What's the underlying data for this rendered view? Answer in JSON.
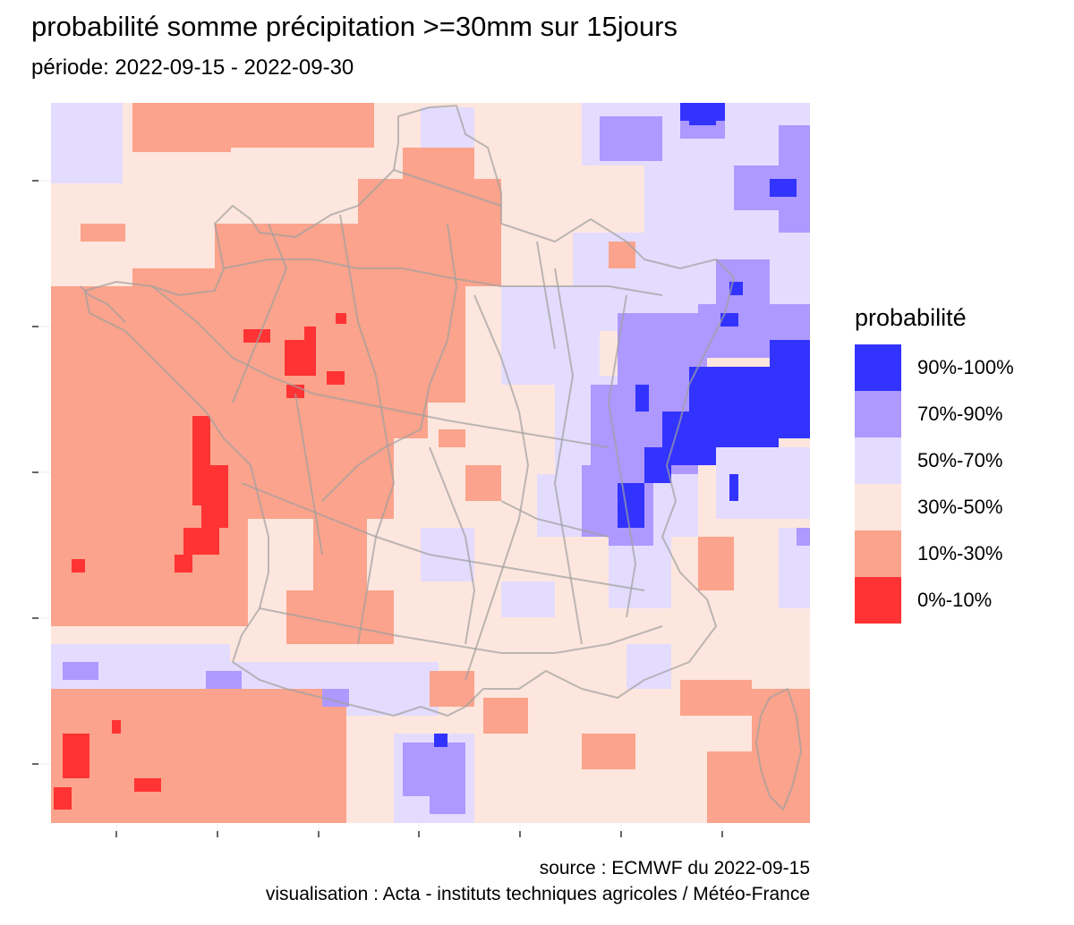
{
  "title": "probabilité somme précipitation >=30mm sur 15jours",
  "subtitle": "période: 2022-09-15 - 2022-09-30",
  "legend": {
    "title": "probabilité",
    "items": [
      {
        "label": "90%-100%",
        "color": "#3333ff"
      },
      {
        "label": "70%-90%",
        "color": "#ad99ff"
      },
      {
        "label": "50%-70%",
        "color": "#e4dcff"
      },
      {
        "label": "30%-50%",
        "color": "#fde6dd"
      },
      {
        "label": "10%-30%",
        "color": "#fba38c"
      },
      {
        "label": "0%-10%",
        "color": "#ff3333"
      }
    ]
  },
  "caption": {
    "source": "source : ECMWF du 2022-09-15",
    "visualisation": "visualisation : Acta - instituts techniques agricoles / Météo-France"
  }
}
